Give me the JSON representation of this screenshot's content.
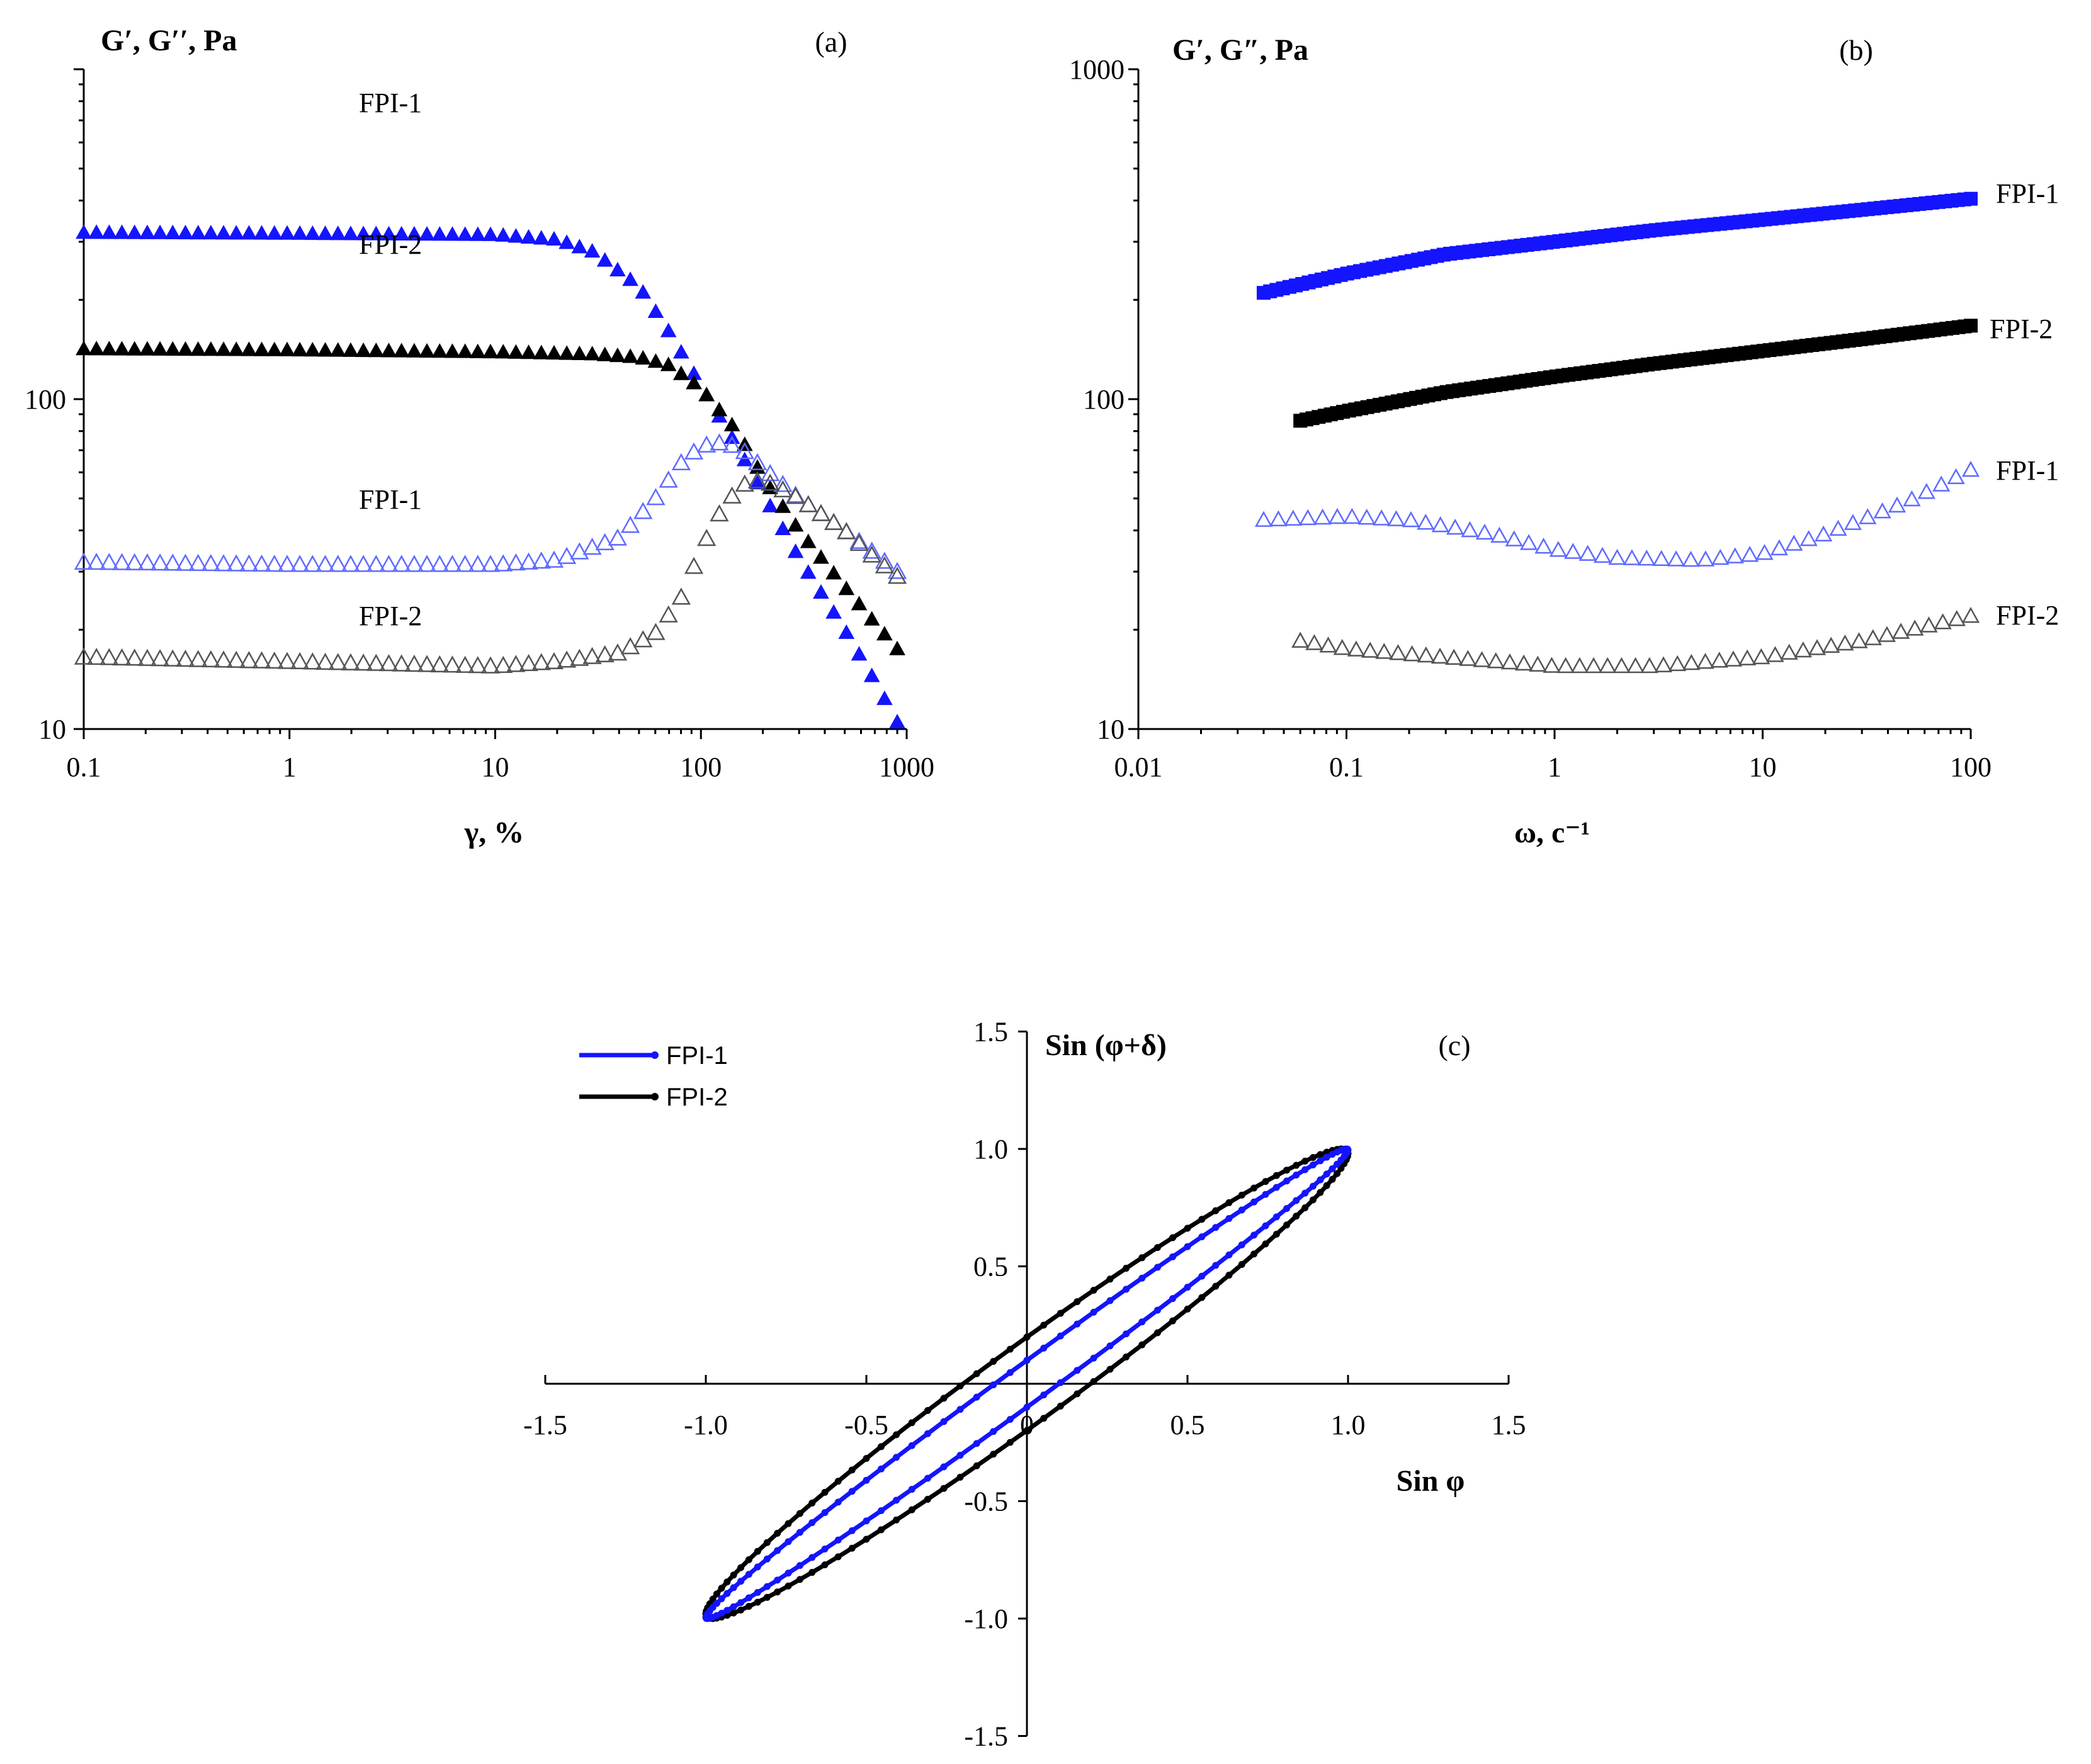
{
  "colors": {
    "blue": "#1414ff",
    "black": "#000000",
    "light_blue": "#5f6bff",
    "gray": "#555555"
  },
  "chart_data": [
    {
      "id": "a",
      "type": "scatter",
      "panel_label": "(a)",
      "ylabel": "G′, G′′, Pa",
      "xlabel": "γ, %",
      "xscale": "log",
      "yscale": "log",
      "xlim": [
        0.1,
        1000
      ],
      "ylim": [
        10,
        1000
      ],
      "x_ticks": [
        "0.1",
        "1",
        "10",
        "100",
        "1000"
      ],
      "y_ticks": [
        "10",
        "100"
      ],
      "series": [
        {
          "name": "FPI-1",
          "modulus": "G′",
          "marker": "filled-triangle",
          "color": "#1414ff",
          "x": [
            0.1,
            1,
            10,
            20,
            30,
            50,
            70,
            100,
            150,
            200,
            300,
            500,
            700,
            900
          ],
          "y": [
            320,
            318,
            315,
            305,
            280,
            220,
            160,
            110,
            72,
            52,
            33,
            20,
            14,
            10.5
          ]
        },
        {
          "name": "FPI-2",
          "modulus": "G′",
          "marker": "filled-triangle",
          "color": "#000000",
          "x": [
            0.1,
            1,
            10,
            30,
            50,
            70,
            100,
            150,
            200,
            300,
            500,
            700,
            900
          ],
          "y": [
            142,
            141,
            139,
            137,
            134,
            127,
            108,
            80,
            58,
            40,
            27,
            21,
            17.5
          ]
        },
        {
          "name": "FPI-1",
          "modulus": "G′′",
          "marker": "open-triangle",
          "color": "#5f6bff",
          "x": [
            0.1,
            1,
            10,
            20,
            40,
            60,
            80,
            100,
            130,
            160,
            200,
            300,
            500,
            700,
            900
          ],
          "y": [
            32,
            31.5,
            31.5,
            32.5,
            38,
            50,
            64,
            72,
            74,
            70,
            62,
            50,
            40,
            34,
            30
          ]
        },
        {
          "name": "FPI-2",
          "modulus": "G′′",
          "marker": "open-triangle",
          "color": "#555555",
          "x": [
            0.1,
            1,
            10,
            20,
            40,
            60,
            80,
            100,
            130,
            160,
            200,
            300,
            500,
            700,
            900
          ],
          "y": [
            16.5,
            16,
            15.5,
            16,
            17,
            19.5,
            25,
            35,
            48,
            55,
            57,
            50,
            40,
            33,
            29
          ]
        }
      ],
      "annotations": [
        "FPI-1",
        "FPI-2",
        "FPI-1",
        "FPI-2"
      ]
    },
    {
      "id": "b",
      "type": "scatter",
      "panel_label": "(b)",
      "ylabel": "G′, G″, Pa",
      "xlabel": "ω, c⁻¹",
      "xscale": "log",
      "yscale": "log",
      "xlim": [
        0.01,
        100
      ],
      "ylim": [
        10,
        1000
      ],
      "x_ticks": [
        "0.01",
        "0.1",
        "1",
        "10",
        "100"
      ],
      "y_ticks": [
        "10",
        "100",
        "1000"
      ],
      "series": [
        {
          "name": "FPI-1",
          "modulus": "G′",
          "marker": "filled-square",
          "color": "#1414ff",
          "x": [
            0.04,
            0.1,
            0.3,
            1,
            3,
            10,
            30,
            100
          ],
          "y": [
            210,
            240,
            275,
            300,
            325,
            350,
            375,
            405
          ]
        },
        {
          "name": "FPI-2",
          "modulus": "G′",
          "marker": "filled-square",
          "color": "#000000",
          "x": [
            0.06,
            0.1,
            0.3,
            1,
            3,
            10,
            30,
            100
          ],
          "y": [
            86,
            92,
            105,
            117,
            128,
            140,
            152,
            167
          ]
        },
        {
          "name": "FPI-1",
          "modulus": "G″",
          "marker": "open-triangle",
          "color": "#5f6bff",
          "x": [
            0.04,
            0.1,
            0.2,
            0.5,
            1,
            2,
            5,
            10,
            20,
            50,
            100
          ],
          "y": [
            43,
            44,
            43,
            39,
            35,
            33,
            32.5,
            34,
            39,
            49,
            61
          ]
        },
        {
          "name": "FPI-2",
          "modulus": "G″",
          "marker": "open-triangle",
          "color": "#555555",
          "x": [
            0.06,
            0.1,
            0.3,
            1,
            3,
            10,
            30,
            100
          ],
          "y": [
            18.5,
            17.5,
            16.5,
            15.5,
            15.5,
            16.5,
            18.5,
            22
          ]
        }
      ],
      "annotations": [
        "FPI-1",
        "FPI-2",
        "FPI-1",
        "FPI-2"
      ]
    },
    {
      "id": "c",
      "type": "line",
      "panel_label": "(c)",
      "ylabel": "Sin (φ+δ)",
      "xlabel": "Sin φ",
      "xlim": [
        -1.5,
        1.5
      ],
      "ylim": [
        -1.5,
        1.5
      ],
      "x_ticks": [
        "-1.5",
        "-1.0",
        "-0.5",
        "0",
        "0.5",
        "1.0",
        "1.5"
      ],
      "y_ticks": [
        "-1.5",
        "-1.0",
        "-0.5",
        "0",
        "0.5",
        "1.0",
        "1.5"
      ],
      "series": [
        {
          "name": "FPI-1",
          "color": "#1414ff",
          "shape": "ellipse",
          "delta_rad": 0.1
        },
        {
          "name": "FPI-2",
          "color": "#000000",
          "shape": "ellipse",
          "delta_rad": 0.2
        }
      ]
    }
  ]
}
